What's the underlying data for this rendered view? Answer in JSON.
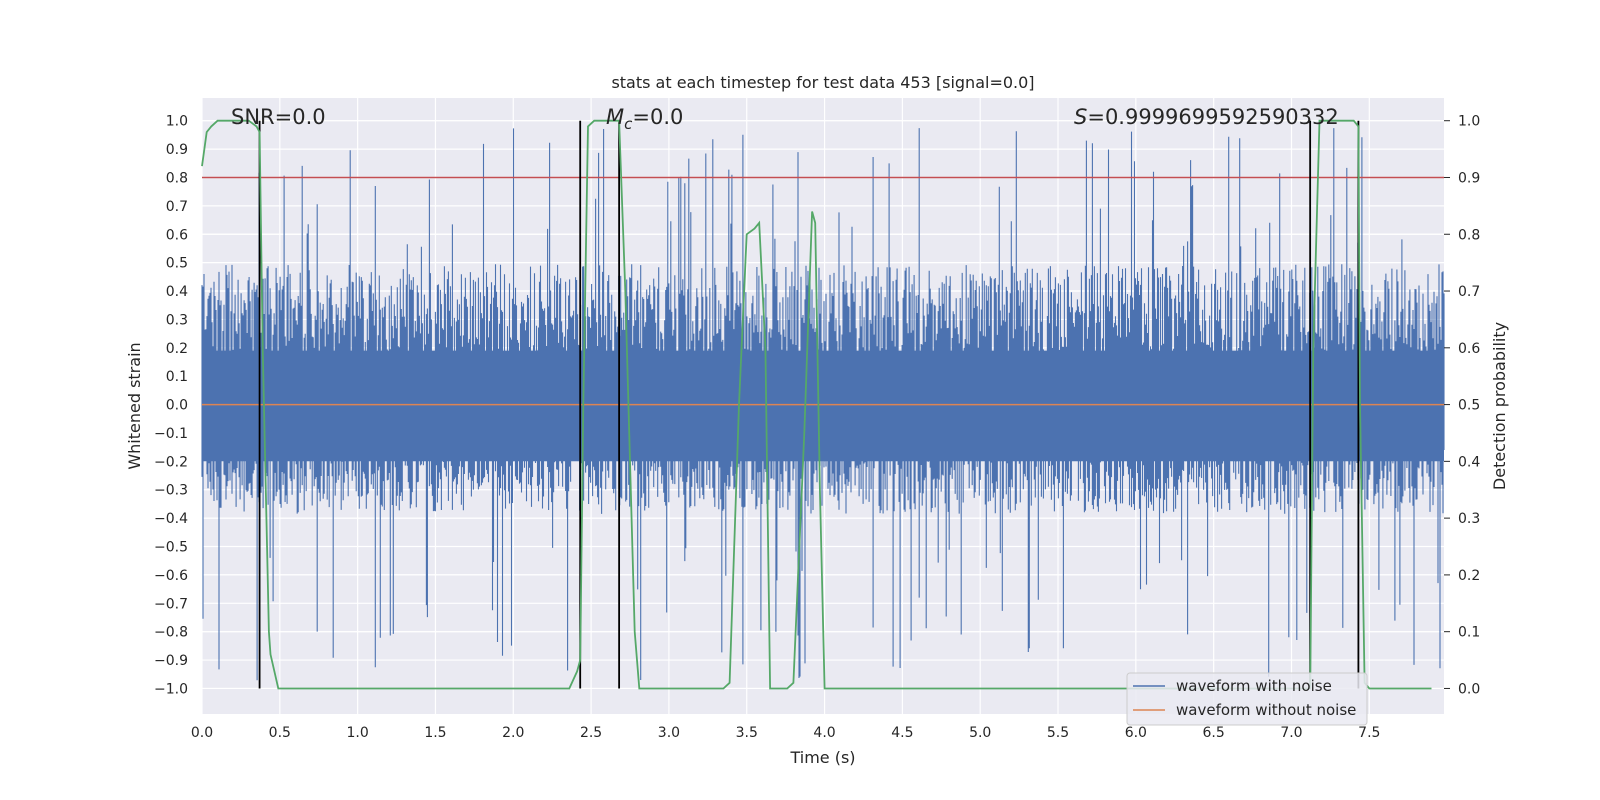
{
  "chart_data": {
    "type": "line",
    "title": "stats at each timestep for test data 453 [signal=0.0]",
    "xlabel": "Time (s)",
    "ylabel": "Whitened strain",
    "y2label": "Detection probability",
    "xlim": [
      0.0,
      7.98
    ],
    "ylim": [
      -1.09,
      1.08
    ],
    "y2lim": [
      -0.045,
      1.04
    ],
    "xticks": [
      "0.0",
      "0.5",
      "1.0",
      "1.5",
      "2.0",
      "2.5",
      "3.0",
      "3.5",
      "4.0",
      "4.5",
      "5.0",
      "5.5",
      "6.0",
      "6.5",
      "7.0",
      "7.5"
    ],
    "yticks": [
      "−1.0",
      "−0.9",
      "−0.8",
      "−0.7",
      "−0.6",
      "−0.5",
      "−0.4",
      "−0.3",
      "−0.2",
      "−0.1",
      "0.0",
      "0.1",
      "0.2",
      "0.3",
      "0.4",
      "0.5",
      "0.6",
      "0.7",
      "0.8",
      "0.9",
      "1.0"
    ],
    "y2ticks": [
      "0.0",
      "0.1",
      "0.2",
      "0.3",
      "0.4",
      "0.5",
      "0.6",
      "0.7",
      "0.8",
      "0.9",
      "1.0"
    ],
    "grid": true,
    "annotations": {
      "snr_text": "SNR=0.0",
      "mc_symbol": "M",
      "mc_sub": "c",
      "mc_value": "=0.0",
      "s_symbol": "S",
      "s_value": "=0.9999699592590332"
    },
    "legend": {
      "position": "lower right",
      "entries": [
        {
          "label": "waveform with noise",
          "color": "#4c72b0"
        },
        {
          "label": "waveform without noise",
          "color": "#dd8452"
        }
      ]
    },
    "threshold_line": {
      "y2": 0.9,
      "color": "#c44e52"
    },
    "vertical_markers": [
      0.37,
      2.43,
      2.68,
      7.12,
      7.43
    ],
    "noise_envelope": {
      "upper_typical": 0.45,
      "lower_typical": -0.35,
      "upper_peak": 0.98,
      "lower_peak": -0.99
    },
    "detection_probability": {
      "color": "#55a868",
      "x": [
        0.0,
        0.03,
        0.06,
        0.1,
        0.15,
        0.2,
        0.25,
        0.3,
        0.35,
        0.37,
        0.39,
        0.43,
        0.44,
        0.49,
        0.55,
        0.6,
        1.0,
        1.5,
        2.0,
        2.3,
        2.36,
        2.41,
        2.43,
        2.45,
        2.48,
        2.52,
        2.6,
        2.68,
        2.72,
        2.78,
        2.81,
        3.0,
        3.3,
        3.35,
        3.39,
        3.45,
        3.5,
        3.55,
        3.58,
        3.62,
        3.65,
        3.76,
        3.8,
        3.87,
        3.92,
        3.94,
        3.97,
        4.0,
        4.05,
        4.5,
        5.0,
        5.5,
        6.0,
        6.5,
        7.0,
        7.08,
        7.12,
        7.14,
        7.18,
        7.22,
        7.3,
        7.4,
        7.43,
        7.44,
        7.47,
        7.5,
        7.6,
        7.9
      ],
      "y": [
        0.92,
        0.98,
        0.99,
        1.0,
        1.0,
        1.0,
        1.0,
        1.0,
        0.99,
        0.98,
        0.6,
        0.1,
        0.06,
        0.0,
        0.0,
        0.0,
        0.0,
        0.0,
        0.0,
        0.0,
        0.0,
        0.03,
        0.05,
        0.5,
        0.99,
        1.0,
        1.0,
        1.0,
        0.7,
        0.1,
        0.0,
        0.0,
        0.0,
        0.0,
        0.01,
        0.5,
        0.8,
        0.81,
        0.82,
        0.6,
        0.0,
        0.0,
        0.01,
        0.45,
        0.84,
        0.82,
        0.35,
        0.0,
        0.0,
        0.0,
        0.0,
        0.0,
        0.0,
        0.0,
        0.0,
        0.0,
        0.0,
        0.6,
        1.0,
        1.0,
        1.0,
        1.0,
        0.99,
        0.5,
        0.01,
        0.0,
        0.0,
        0.0
      ]
    }
  }
}
